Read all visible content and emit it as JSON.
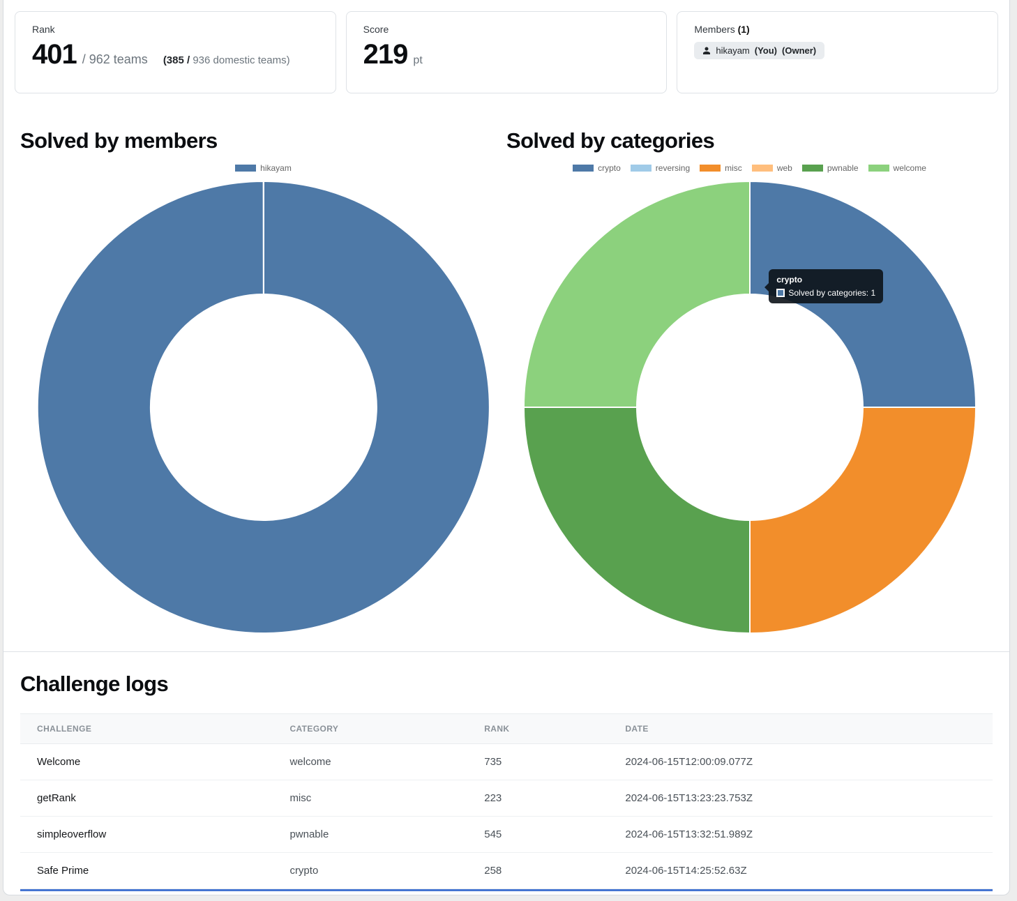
{
  "stats": {
    "rank": {
      "label": "Rank",
      "value": "401",
      "total_suffix": "/ 962 teams",
      "domestic_bold": "(385 /",
      "domestic_muted": "936 domestic teams)"
    },
    "score": {
      "label": "Score",
      "value": "219",
      "unit": "pt"
    },
    "members": {
      "label": "Members",
      "count": "(1)",
      "member": {
        "name": "hikayam",
        "you": "(You)",
        "owner": "(Owner)"
      }
    }
  },
  "sections": {
    "members_chart_title": "Solved by members",
    "categories_chart_title": "Solved by categories",
    "logs_title": "Challenge logs"
  },
  "chart_data": [
    {
      "type": "pie",
      "subtype": "donut",
      "title": "Solved by members",
      "categories": [
        "hikayam"
      ],
      "values": [
        4
      ],
      "colors": [
        "#4E79A7"
      ],
      "legend_position": "top"
    },
    {
      "type": "pie",
      "subtype": "donut",
      "title": "Solved by categories",
      "categories": [
        "crypto",
        "reversing",
        "misc",
        "web",
        "pwnable",
        "welcome"
      ],
      "values": [
        1,
        0,
        1,
        0,
        1,
        1
      ],
      "colors": [
        "#4E79A7",
        "#A0CBE8",
        "#F28E2B",
        "#FFBE7D",
        "#59A14F",
        "#8CD17D"
      ],
      "legend_position": "top",
      "tooltip": {
        "title": "crypto",
        "label": "Solved by categories: 1",
        "color": "#4E79A7"
      }
    }
  ],
  "table": {
    "headers": [
      "CHALLENGE",
      "CATEGORY",
      "RANK",
      "DATE"
    ],
    "rows": [
      {
        "challenge": "Welcome",
        "category": "welcome",
        "rank": "735",
        "date": "2024-06-15T12:00:09.077Z"
      },
      {
        "challenge": "getRank",
        "category": "misc",
        "rank": "223",
        "date": "2024-06-15T13:23:23.753Z"
      },
      {
        "challenge": "simpleoverflow",
        "category": "pwnable",
        "rank": "545",
        "date": "2024-06-15T13:32:51.989Z"
      },
      {
        "challenge": "Safe Prime",
        "category": "crypto",
        "rank": "258",
        "date": "2024-06-15T14:25:52.63Z"
      }
    ]
  }
}
